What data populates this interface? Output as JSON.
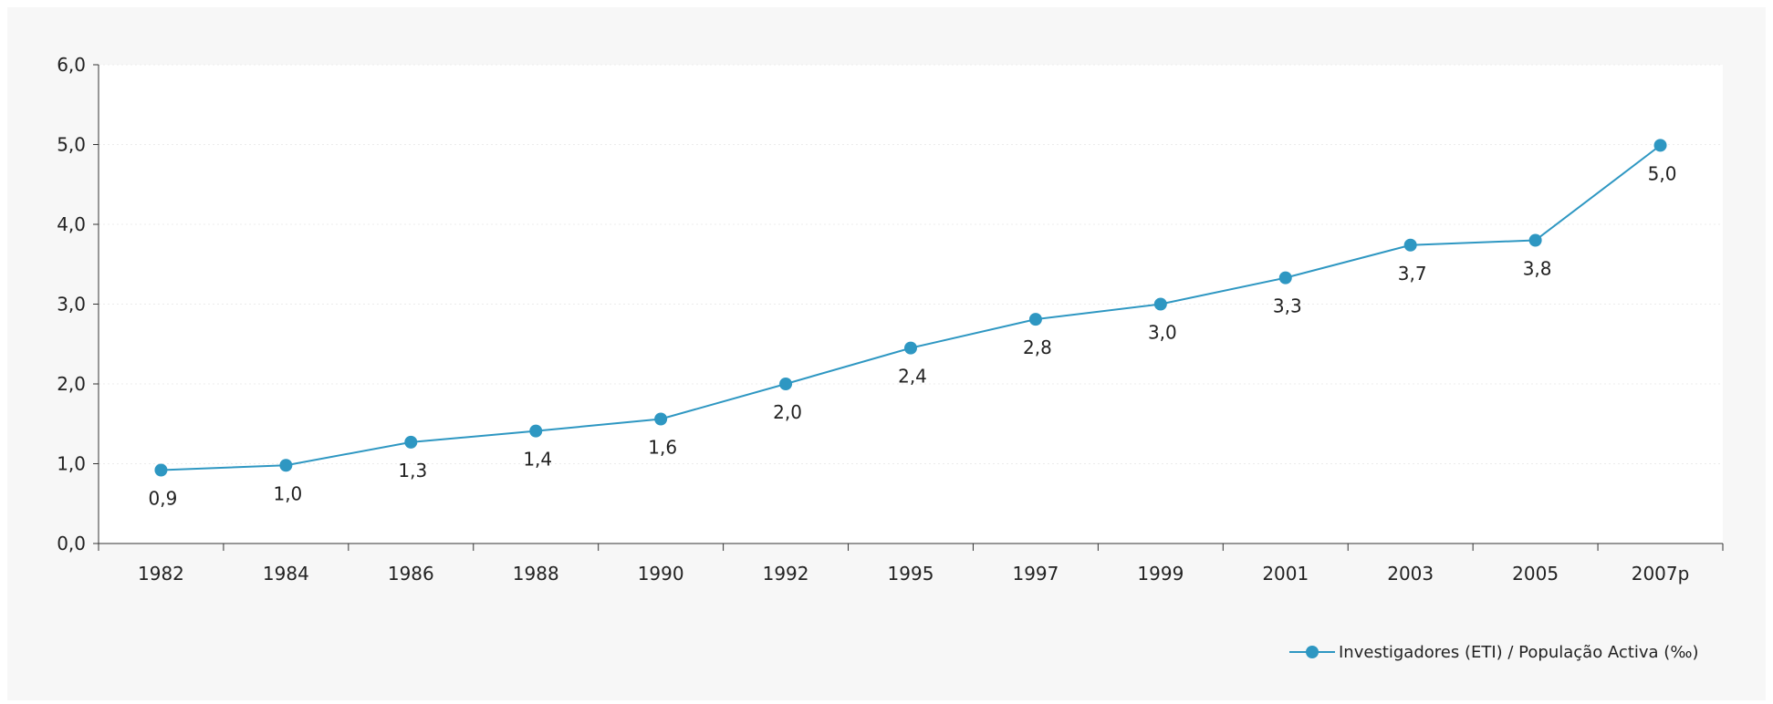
{
  "chart_data": {
    "type": "line",
    "categories": [
      "1982",
      "1984",
      "1986",
      "1988",
      "1990",
      "1992",
      "1995",
      "1997",
      "1999",
      "2001",
      "2003",
      "2005",
      "2007p"
    ],
    "series": [
      {
        "name": "Investigadores (ETI) / População Activa (‰)",
        "values": [
          0.92,
          0.98,
          1.27,
          1.41,
          1.56,
          2.0,
          2.45,
          2.81,
          3.0,
          3.33,
          3.74,
          3.8,
          4.99
        ],
        "labels": [
          "0,9",
          "1,0",
          "1,3",
          "1,4",
          "1,6",
          "2,0",
          "2,4",
          "2,8",
          "3,0",
          "3,3",
          "3,7",
          "3,8",
          "5,0"
        ]
      }
    ],
    "ylim": [
      0,
      6
    ],
    "yticks": [
      0,
      1,
      2,
      3,
      4,
      5,
      6
    ],
    "ytick_labels": [
      "0,0",
      "1,0",
      "2,0",
      "3,0",
      "4,0",
      "5,0",
      "6,0"
    ],
    "grid": true,
    "legend_position": "bottom-right",
    "colors": {
      "series": "#2e97c2",
      "axis": "#333333",
      "background": "#f7f7f7",
      "plot_background": "#ffffff"
    }
  }
}
